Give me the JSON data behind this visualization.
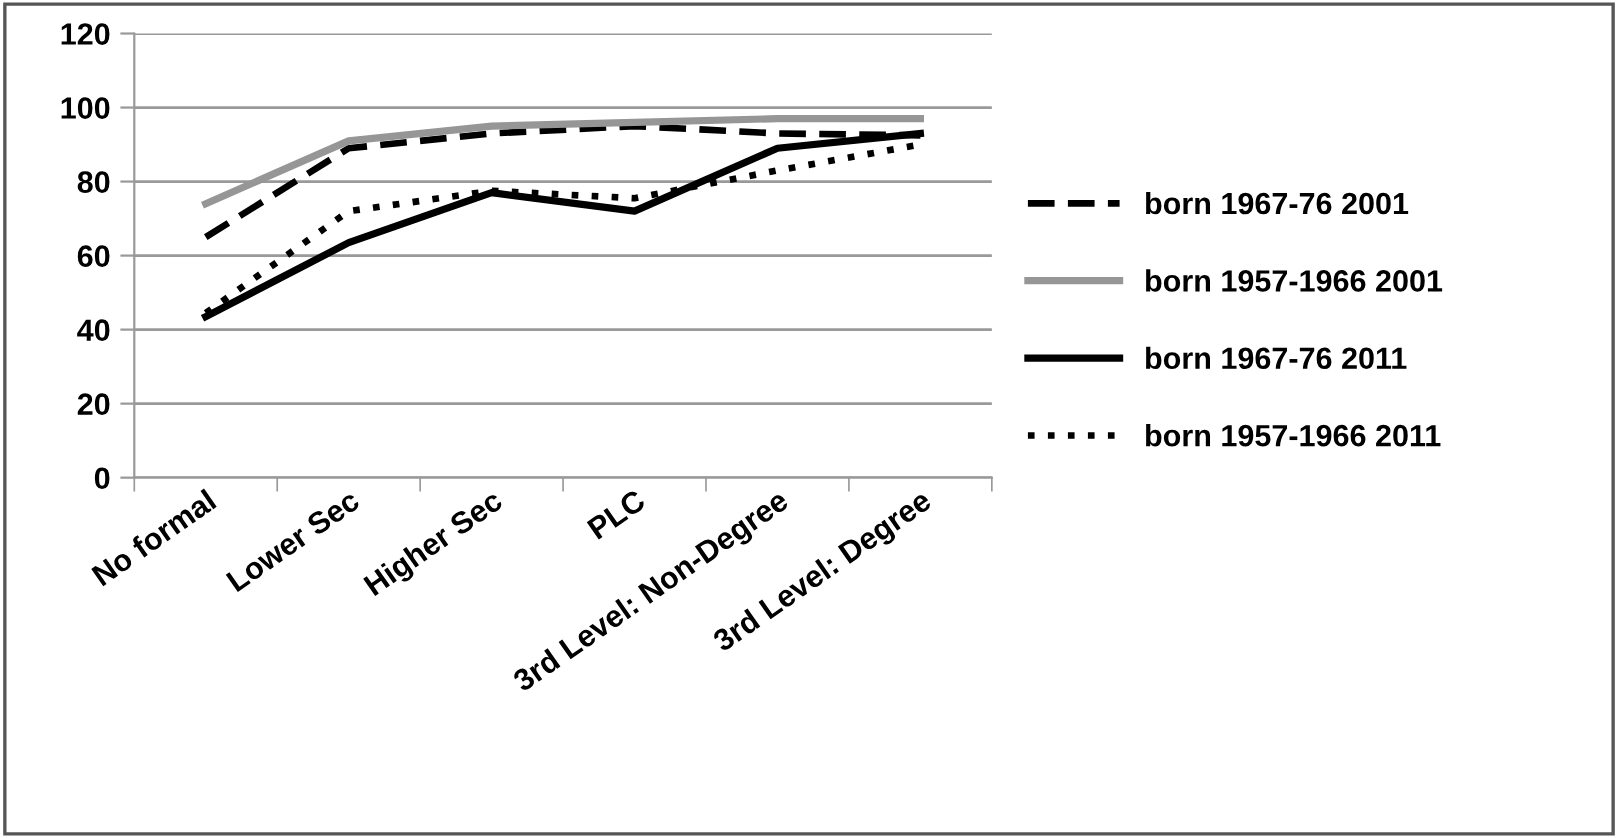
{
  "chart_data": {
    "type": "line",
    "categories": [
      "No formal",
      "Lower Sec",
      "Higher Sec",
      "PLC",
      "3rd Level: Non-Degree",
      "3rd Level: Degree"
    ],
    "series": [
      {
        "name": "born 1967-76 2001",
        "color": "#000000",
        "line_style": "dashed",
        "values": [
          65,
          89,
          93,
          95,
          93,
          92.5
        ]
      },
      {
        "name": "born 1957-1966 2001",
        "color": "#969696",
        "line_style": "solid",
        "values": [
          74,
          91,
          95,
          96,
          97,
          97
        ]
      },
      {
        "name": "born 1967-76 2011",
        "color": "#000000",
        "line_style": "solid",
        "values": [
          43.5,
          63.5,
          77,
          72,
          89,
          93
        ]
      },
      {
        "name": "born 1957-1966 2011",
        "color": "#000000",
        "line_style": "dotted",
        "values": [
          44.5,
          72,
          77.5,
          75.5,
          83,
          90
        ]
      }
    ],
    "ylim": [
      0,
      120
    ],
    "yticks": [
      0,
      20,
      40,
      60,
      80,
      100,
      120
    ],
    "grid": "y",
    "legend": "right",
    "marker": "none"
  }
}
